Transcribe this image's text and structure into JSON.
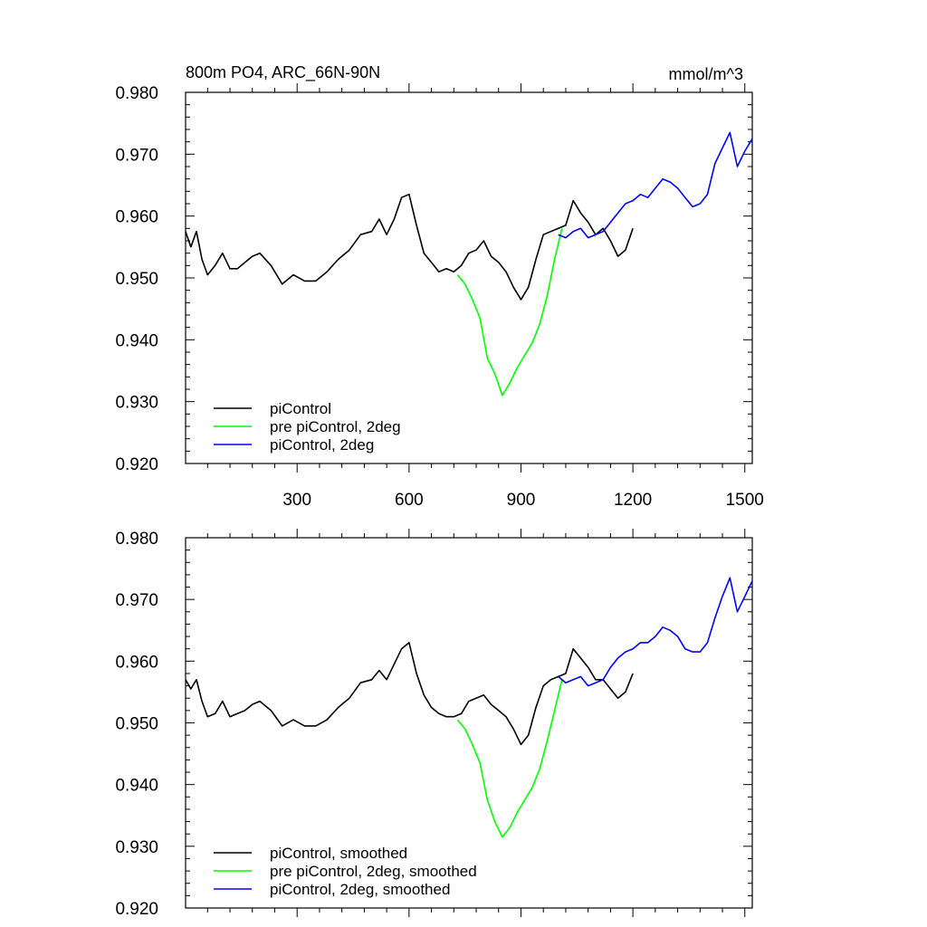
{
  "chart_data": [
    {
      "type": "line",
      "title": "800m PO4, ARC_66N-90N",
      "units": "mmol/m^3",
      "xlim": [
        1,
        1520
      ],
      "ylim": [
        0.92,
        0.98
      ],
      "x_ticks": [
        300,
        600,
        900,
        1200,
        1500
      ],
      "x_tick_labels": [
        "300",
        "600",
        "900",
        "1200",
        "1500"
      ],
      "y_ticks": [
        0.92,
        0.93,
        0.94,
        0.95,
        0.96,
        0.97,
        0.98
      ],
      "y_tick_labels": [
        "0.920",
        "0.930",
        "0.940",
        "0.950",
        "0.960",
        "0.970",
        "0.980"
      ],
      "legend_position": "lower-left",
      "series": [
        {
          "name": "piControl",
          "color": "#000000",
          "x": [
            1,
            15,
            30,
            45,
            60,
            80,
            100,
            120,
            140,
            160,
            180,
            200,
            230,
            260,
            290,
            320,
            350,
            380,
            410,
            440,
            470,
            500,
            520,
            540,
            560,
            580,
            600,
            620,
            640,
            660,
            680,
            700,
            720,
            740,
            760,
            780,
            800,
            820,
            840,
            860,
            880,
            900,
            920,
            940,
            960,
            980,
            1000,
            1020,
            1040,
            1060,
            1080,
            1100,
            1120,
            1140,
            1160,
            1180,
            1200
          ],
          "y": [
            0.9575,
            0.955,
            0.9575,
            0.953,
            0.9505,
            0.952,
            0.954,
            0.9515,
            0.9515,
            0.9525,
            0.9535,
            0.954,
            0.952,
            0.949,
            0.9505,
            0.9495,
            0.9495,
            0.951,
            0.953,
            0.9545,
            0.957,
            0.9575,
            0.9595,
            0.957,
            0.9595,
            0.963,
            0.9635,
            0.9585,
            0.954,
            0.9525,
            0.951,
            0.9515,
            0.951,
            0.952,
            0.954,
            0.9545,
            0.956,
            0.9535,
            0.9525,
            0.951,
            0.9485,
            0.9465,
            0.9485,
            0.953,
            0.957,
            0.9575,
            0.958,
            0.9585,
            0.9625,
            0.9605,
            0.959,
            0.957,
            0.958,
            0.956,
            0.9535,
            0.9545,
            0.958
          ]
        },
        {
          "name": "pre piControl, 2deg",
          "color": "#00ff00",
          "x": [
            730,
            750,
            770,
            790,
            810,
            830,
            850,
            870,
            890,
            910,
            930,
            950,
            970,
            990,
            1010
          ],
          "y": [
            0.9505,
            0.949,
            0.9465,
            0.9435,
            0.937,
            0.9345,
            0.931,
            0.933,
            0.9355,
            0.9375,
            0.9395,
            0.9425,
            0.947,
            0.953,
            0.958
          ]
        },
        {
          "name": "piControl, 2deg",
          "color": "#0000ff",
          "x": [
            1000,
            1020,
            1040,
            1060,
            1080,
            1100,
            1120,
            1140,
            1160,
            1180,
            1200,
            1220,
            1240,
            1260,
            1280,
            1300,
            1320,
            1340,
            1360,
            1380,
            1400,
            1420,
            1440,
            1460,
            1480,
            1500,
            1520
          ],
          "y": [
            0.957,
            0.9565,
            0.9575,
            0.958,
            0.9565,
            0.957,
            0.9575,
            0.959,
            0.9605,
            0.962,
            0.9625,
            0.9635,
            0.963,
            0.9645,
            0.966,
            0.9655,
            0.9645,
            0.963,
            0.9615,
            0.962,
            0.9635,
            0.9685,
            0.971,
            0.9735,
            0.968,
            0.9705,
            0.9725
          ]
        }
      ]
    },
    {
      "type": "line",
      "xlim": [
        1,
        1520
      ],
      "ylim": [
        0.92,
        0.98
      ],
      "x_ticks": [
        300,
        600,
        900,
        1200,
        1500
      ],
      "y_ticks": [
        0.92,
        0.93,
        0.94,
        0.95,
        0.96,
        0.97,
        0.98
      ],
      "y_tick_labels": [
        "0.920",
        "0.930",
        "0.940",
        "0.950",
        "0.960",
        "0.970",
        "0.980"
      ],
      "legend_position": "lower-left",
      "series": [
        {
          "name": "piControl, smoothed",
          "color": "#000000",
          "x": [
            1,
            15,
            30,
            45,
            60,
            80,
            100,
            120,
            140,
            160,
            180,
            200,
            230,
            260,
            290,
            320,
            350,
            380,
            410,
            440,
            470,
            500,
            520,
            540,
            560,
            580,
            600,
            620,
            640,
            660,
            680,
            700,
            720,
            740,
            760,
            780,
            800,
            820,
            840,
            860,
            880,
            900,
            920,
            940,
            960,
            980,
            1000,
            1020,
            1040,
            1060,
            1080,
            1100,
            1120,
            1140,
            1160,
            1180,
            1200
          ],
          "y": [
            0.957,
            0.9555,
            0.957,
            0.9535,
            0.951,
            0.9515,
            0.9535,
            0.951,
            0.9515,
            0.952,
            0.953,
            0.9535,
            0.952,
            0.9495,
            0.9505,
            0.9495,
            0.9495,
            0.9505,
            0.9525,
            0.954,
            0.9565,
            0.957,
            0.9585,
            0.957,
            0.9595,
            0.962,
            0.963,
            0.958,
            0.9545,
            0.9525,
            0.9515,
            0.951,
            0.951,
            0.9515,
            0.9535,
            0.954,
            0.9545,
            0.953,
            0.952,
            0.951,
            0.949,
            0.9465,
            0.948,
            0.9525,
            0.956,
            0.957,
            0.9575,
            0.958,
            0.962,
            0.9605,
            0.959,
            0.957,
            0.957,
            0.9555,
            0.954,
            0.955,
            0.958
          ]
        },
        {
          "name": "pre piControl, 2deg, smoothed",
          "color": "#00ff00",
          "x": [
            730,
            750,
            770,
            790,
            810,
            830,
            850,
            870,
            890,
            910,
            930,
            950,
            970,
            990,
            1010
          ],
          "y": [
            0.9505,
            0.949,
            0.9465,
            0.9435,
            0.9375,
            0.934,
            0.9315,
            0.933,
            0.9355,
            0.9375,
            0.9395,
            0.9425,
            0.947,
            0.952,
            0.957
          ]
        },
        {
          "name": "piControl, 2deg, smoothed",
          "color": "#0000ff",
          "x": [
            1000,
            1020,
            1040,
            1060,
            1080,
            1100,
            1120,
            1140,
            1160,
            1180,
            1200,
            1220,
            1240,
            1260,
            1280,
            1300,
            1320,
            1340,
            1360,
            1380,
            1400,
            1420,
            1440,
            1460,
            1480,
            1500,
            1520
          ],
          "y": [
            0.9575,
            0.9565,
            0.957,
            0.9575,
            0.956,
            0.9565,
            0.957,
            0.959,
            0.9605,
            0.9615,
            0.962,
            0.963,
            0.963,
            0.964,
            0.9655,
            0.965,
            0.964,
            0.962,
            0.9615,
            0.9615,
            0.963,
            0.967,
            0.9705,
            0.9735,
            0.968,
            0.9705,
            0.973
          ]
        }
      ]
    }
  ]
}
